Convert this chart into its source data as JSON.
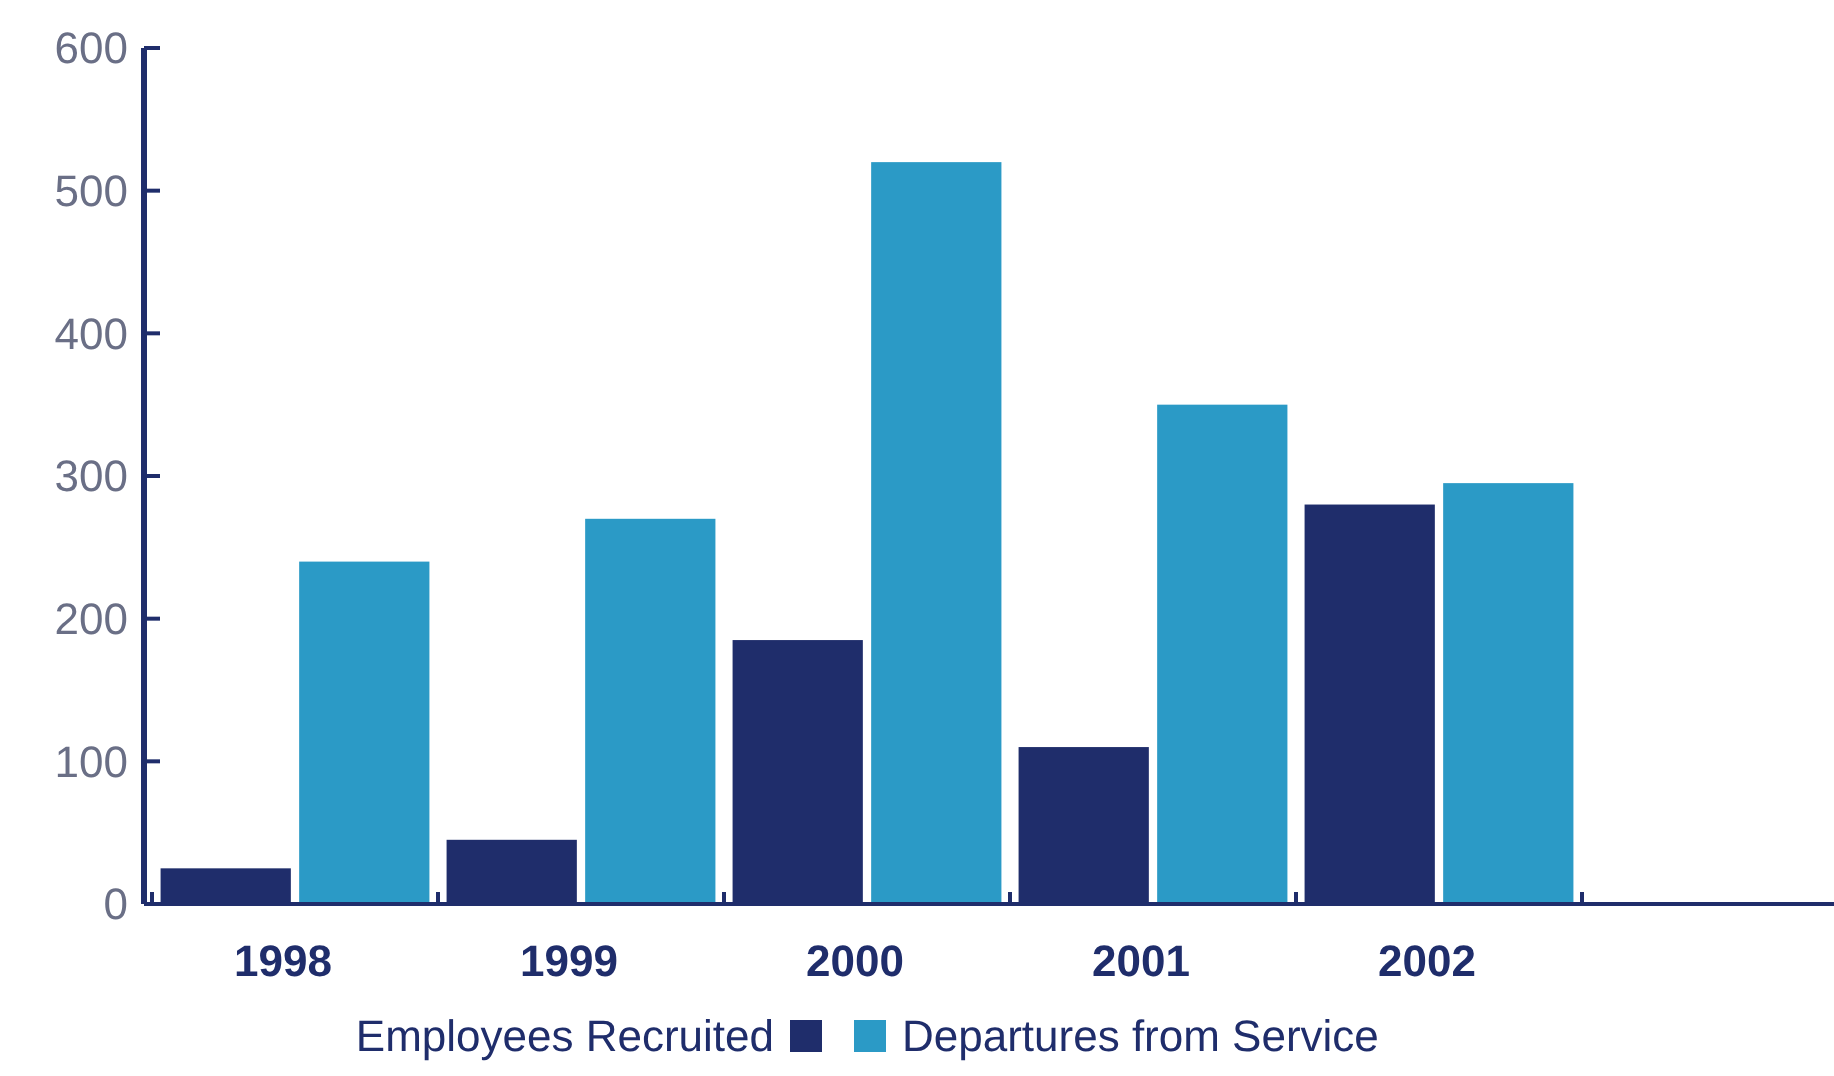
{
  "chart_data": {
    "type": "bar",
    "categories": [
      "1998",
      "1999",
      "2000",
      "2001",
      "2002"
    ],
    "series": [
      {
        "name": "Employees Recruited",
        "color": "#1f2d6b",
        "values": [
          25,
          45,
          185,
          110,
          280
        ]
      },
      {
        "name": "Departures from Service",
        "color": "#2b9ac6",
        "values": [
          240,
          270,
          520,
          350,
          295
        ]
      }
    ],
    "ylim": [
      0,
      600
    ],
    "yticks": [
      0,
      100,
      200,
      300,
      400,
      500,
      600
    ],
    "grid": false,
    "legend": "bottom"
  }
}
